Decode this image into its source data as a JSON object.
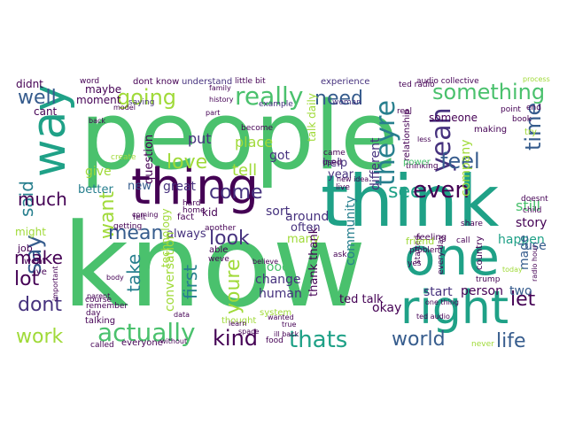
{
  "image": {
    "kind": "word cloud",
    "background": "#ffffff"
  },
  "palette": {
    "dark_purple": "#440154",
    "indigo": "#46327e",
    "blue": "#365c8d",
    "teal_blue": "#277f8e",
    "teal": "#1fa187",
    "green": "#4ac16d",
    "lime": "#a0da39",
    "yellow": "#fde725"
  },
  "words": [
    {
      "text": "people",
      "color": "#4ac16d"
    },
    {
      "text": "know",
      "color": "#4ac16d"
    },
    {
      "text": "think",
      "color": "#1fa187"
    },
    {
      "text": "thing",
      "color": "#440154"
    },
    {
      "text": "one",
      "color": "#1fa187"
    },
    {
      "text": "right",
      "color": "#1fa187"
    },
    {
      "text": "way",
      "color": "#1fa187"
    },
    {
      "text": "really",
      "color": "#4ac16d"
    },
    {
      "text": "going",
      "color": "#a0da39"
    },
    {
      "text": "something",
      "color": "#4ac16d"
    },
    {
      "text": "well",
      "color": "#365c8d"
    },
    {
      "text": "need",
      "color": "#365c8d"
    },
    {
      "text": "yeah",
      "color": "#46327e"
    },
    {
      "text": "time",
      "color": "#365c8d"
    },
    {
      "text": "feel",
      "color": "#365c8d"
    },
    {
      "text": "theyre",
      "color": "#277f8e"
    },
    {
      "text": "see",
      "color": "#1fa187"
    },
    {
      "text": "even",
      "color": "#440154"
    },
    {
      "text": "come",
      "color": "#46327e"
    },
    {
      "text": "love",
      "color": "#a0da39"
    },
    {
      "text": "want",
      "color": "#a0da39"
    },
    {
      "text": "said",
      "color": "#277f8e"
    },
    {
      "text": "much",
      "color": "#440154"
    },
    {
      "text": "say",
      "color": "#365c8d"
    },
    {
      "text": "mean",
      "color": "#365c8d"
    },
    {
      "text": "look",
      "color": "#46327e"
    },
    {
      "text": "make",
      "color": "#440154"
    },
    {
      "text": "lot",
      "color": "#440154"
    },
    {
      "text": "take",
      "color": "#277f8e"
    },
    {
      "text": "first",
      "color": "#277f8e"
    },
    {
      "text": "youre",
      "color": "#a0da39"
    },
    {
      "text": "dont",
      "color": "#46327e"
    },
    {
      "text": "work",
      "color": "#a0da39"
    },
    {
      "text": "actually",
      "color": "#4ac16d"
    },
    {
      "text": "kind",
      "color": "#440154"
    },
    {
      "text": "thats",
      "color": "#1fa187"
    },
    {
      "text": "world",
      "color": "#365c8d"
    },
    {
      "text": "life",
      "color": "#365c8d"
    },
    {
      "text": "let",
      "color": "#440154"
    },
    {
      "text": "tell",
      "color": "#a0da39"
    },
    {
      "text": "put",
      "color": "#46327e"
    },
    {
      "text": "place",
      "color": "#a0da39"
    },
    {
      "text": "got",
      "color": "#46327e"
    },
    {
      "text": "give",
      "color": "#a0da39"
    },
    {
      "text": "better",
      "color": "#277f8e"
    },
    {
      "text": "great",
      "color": "#46327e"
    },
    {
      "text": "sort",
      "color": "#46327e"
    },
    {
      "text": "new",
      "color": "#365c8d"
    },
    {
      "text": "always",
      "color": "#46327e"
    },
    {
      "text": "around",
      "color": "#46327e"
    },
    {
      "text": "many",
      "color": "#a0da39"
    },
    {
      "text": "often",
      "color": "#46327e"
    },
    {
      "text": "still",
      "color": "#4ac16d"
    },
    {
      "text": "story",
      "color": "#440154"
    },
    {
      "text": "happen",
      "color": "#1fa187"
    },
    {
      "text": "use",
      "color": "#365c8d"
    },
    {
      "text": "made",
      "color": "#365c8d"
    },
    {
      "text": "two",
      "color": "#365c8d"
    },
    {
      "text": "start",
      "color": "#46327e"
    },
    {
      "text": "person",
      "color": "#440154"
    },
    {
      "text": "okay",
      "color": "#440154"
    },
    {
      "text": "good",
      "color": "#4ac16d"
    },
    {
      "text": "change",
      "color": "#46327e"
    },
    {
      "text": "human",
      "color": "#46327e"
    },
    {
      "text": "thank thank",
      "color": "#440154"
    },
    {
      "text": "ted talk",
      "color": "#440154"
    },
    {
      "text": "year",
      "color": "#46327e"
    },
    {
      "text": "help",
      "color": "#46327e"
    },
    {
      "text": "company",
      "color": "#a0da39"
    },
    {
      "text": "community",
      "color": "#277f8e"
    },
    {
      "text": "different",
      "color": "#46327e"
    },
    {
      "text": "conversation",
      "color": "#a0da39"
    },
    {
      "text": "question",
      "color": "#440154"
    },
    {
      "text": "talk daily",
      "color": "#a0da39"
    },
    {
      "text": "maybe",
      "color": "#440154"
    },
    {
      "text": "moment",
      "color": "#440154"
    },
    {
      "text": "cant",
      "color": "#440154"
    },
    {
      "text": "didnt",
      "color": "#440154"
    },
    {
      "text": "might",
      "color": "#a0da39"
    },
    {
      "text": "job",
      "color": "#440154"
    },
    {
      "text": "went",
      "color": "#440154"
    },
    {
      "text": "ive",
      "color": "#440154"
    },
    {
      "text": "kid",
      "color": "#440154"
    },
    {
      "text": "someone",
      "color": "#440154"
    },
    {
      "text": "technology",
      "color": "#a0da39"
    },
    {
      "text": "system",
      "color": "#a0da39"
    },
    {
      "text": "thought",
      "color": "#a0da39"
    },
    {
      "text": "everyone",
      "color": "#440154"
    },
    {
      "text": "food",
      "color": "#440154"
    },
    {
      "text": "never",
      "color": "#a0da39"
    },
    {
      "text": "talking",
      "color": "#440154"
    },
    {
      "text": "called",
      "color": "#440154"
    },
    {
      "text": "dont know",
      "color": "#440154"
    },
    {
      "text": "understand",
      "color": "#46327e"
    },
    {
      "text": "saying",
      "color": "#46327e"
    },
    {
      "text": "little bit",
      "color": "#440154"
    },
    {
      "text": "experience",
      "color": "#46327e"
    },
    {
      "text": "audio collective",
      "color": "#440154"
    },
    {
      "text": "process",
      "color": "#a0da39"
    },
    {
      "text": "woman",
      "color": "#46327e"
    },
    {
      "text": "example",
      "color": "#46327e"
    },
    {
      "text": "become",
      "color": "#440154"
    },
    {
      "text": "making",
      "color": "#440154"
    },
    {
      "text": "point",
      "color": "#440154"
    },
    {
      "text": "book",
      "color": "#440154"
    },
    {
      "text": "relationship",
      "color": "#440154"
    },
    {
      "text": "thinking",
      "color": "#440154"
    },
    {
      "text": "power",
      "color": "#4ac16d"
    },
    {
      "text": "feeling",
      "color": "#440154"
    },
    {
      "text": "problem",
      "color": "#440154"
    },
    {
      "text": "yes",
      "color": "#440154"
    },
    {
      "text": "started",
      "color": "#440154"
    },
    {
      "text": "every day",
      "color": "#440154"
    },
    {
      "text": "country",
      "color": "#440154"
    },
    {
      "text": "ask",
      "color": "#440154"
    },
    {
      "text": "friend",
      "color": "#a0da39"
    },
    {
      "text": "call",
      "color": "#440154"
    },
    {
      "text": "child",
      "color": "#440154"
    },
    {
      "text": "share",
      "color": "#440154"
    },
    {
      "text": "trump",
      "color": "#440154"
    },
    {
      "text": "doesnt",
      "color": "#440154"
    },
    {
      "text": "end",
      "color": "#440154"
    },
    {
      "text": "try",
      "color": "#a0da39"
    },
    {
      "text": "real",
      "color": "#440154"
    },
    {
      "text": "came",
      "color": "#440154"
    },
    {
      "text": "used",
      "color": "#440154"
    },
    {
      "text": "ted radio",
      "color": "#440154"
    },
    {
      "text": "word",
      "color": "#440154"
    },
    {
      "text": "back",
      "color": "#440154"
    },
    {
      "text": "felt",
      "color": "#440154"
    },
    {
      "text": "getting",
      "color": "#440154"
    },
    {
      "text": "fact",
      "color": "#440154"
    },
    {
      "text": "hard",
      "color": "#440154"
    },
    {
      "text": "home",
      "color": "#440154"
    },
    {
      "text": "another",
      "color": "#440154"
    },
    {
      "text": "able",
      "color": "#440154"
    },
    {
      "text": "weve",
      "color": "#440154"
    },
    {
      "text": "learn",
      "color": "#440154"
    },
    {
      "text": "space",
      "color": "#440154"
    },
    {
      "text": "wanted",
      "color": "#440154"
    },
    {
      "text": "ill back",
      "color": "#440154"
    },
    {
      "text": "believe",
      "color": "#440154"
    },
    {
      "text": "course",
      "color": "#440154"
    },
    {
      "text": "day",
      "color": "#440154"
    },
    {
      "text": "important",
      "color": "#440154"
    },
    {
      "text": "remember",
      "color": "#440154"
    },
    {
      "text": "parent",
      "color": "#440154"
    },
    {
      "text": "body",
      "color": "#440154"
    },
    {
      "text": "data",
      "color": "#440154"
    },
    {
      "text": "history",
      "color": "#440154"
    },
    {
      "text": "family",
      "color": "#440154"
    },
    {
      "text": "model",
      "color": "#440154"
    },
    {
      "text": "create",
      "color": "#a0da39"
    },
    {
      "text": "part",
      "color": "#440154"
    },
    {
      "text": "less",
      "color": "#440154"
    },
    {
      "text": "live",
      "color": "#440154"
    },
    {
      "text": "new idea",
      "color": "#440154"
    },
    {
      "text": "true",
      "color": "#440154"
    },
    {
      "text": "one thing",
      "color": "#440154"
    },
    {
      "text": "coming",
      "color": "#440154"
    },
    {
      "text": "without",
      "color": "#440154"
    },
    {
      "text": "ted audio",
      "color": "#440154"
    },
    {
      "text": "today",
      "color": "#a0da39"
    },
    {
      "text": "radio hour",
      "color": "#440154"
    }
  ]
}
